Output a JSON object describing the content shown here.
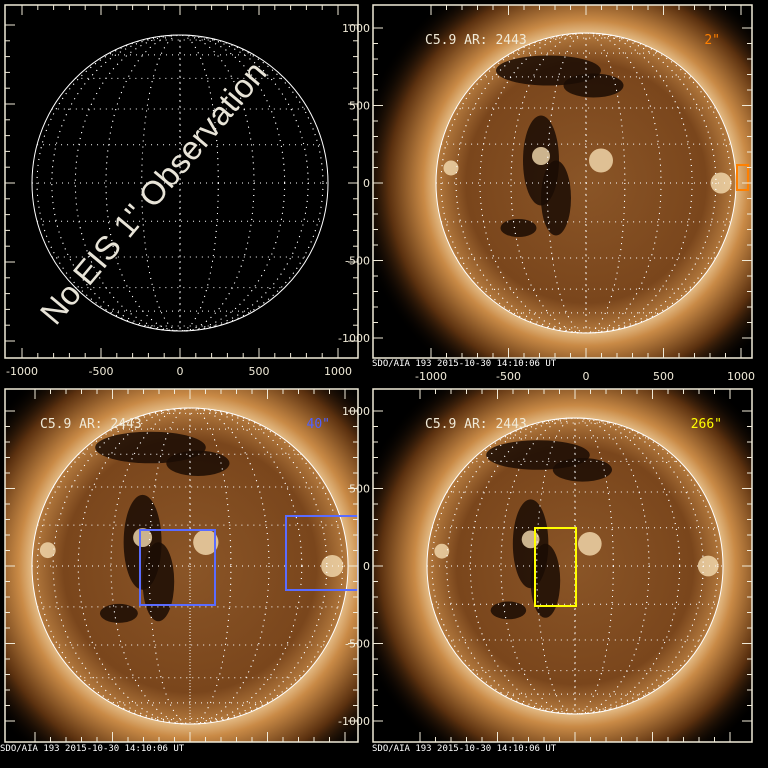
{
  "panels": [
    {
      "id": "eis-1",
      "title": "",
      "resolution": "",
      "message": "No EIS 1\" Observation",
      "show_sun": false,
      "x_ticks": [
        "-1000",
        "-500",
        "0",
        "500",
        "1000"
      ],
      "y_ticks": [],
      "footer": ""
    },
    {
      "id": "eis-2",
      "title": "C5.9 AR: 2443",
      "resolution": "2\"",
      "resolution_color": "#ff8000",
      "show_sun": true,
      "x_ticks": [
        "-1000",
        "-500",
        "0",
        "500",
        "1000"
      ],
      "y_ticks": [
        "1000",
        "500",
        "0",
        "-500",
        "-1000"
      ],
      "footer": "SDO/AIA 193   2015-10-30 14:10:06 UT",
      "box_color": "#ff8000"
    },
    {
      "id": "eis-40",
      "title": "C5.9 AR: 2443",
      "resolution": "40\"",
      "resolution_color": "#5060ff",
      "show_sun": true,
      "x_ticks": [],
      "y_ticks": [],
      "footer": "SDO/AIA 193   2015-10-30 14:10:06 UT",
      "box_color": "#5a6cff"
    },
    {
      "id": "eis-266",
      "title": "C5.9 AR: 2443",
      "resolution": "266\"",
      "resolution_color": "#ffff00",
      "show_sun": true,
      "x_ticks": [],
      "y_ticks": [
        "1000",
        "500",
        "0",
        "-500",
        "-1000"
      ],
      "footer": "SDO/AIA 193   2015-10-30 14:10:06 UT",
      "box_color": "#ffff00"
    }
  ],
  "colors": {
    "axis": "#f0ead8",
    "disk": "#7a4a1e",
    "corona": "#f5d9a8"
  }
}
